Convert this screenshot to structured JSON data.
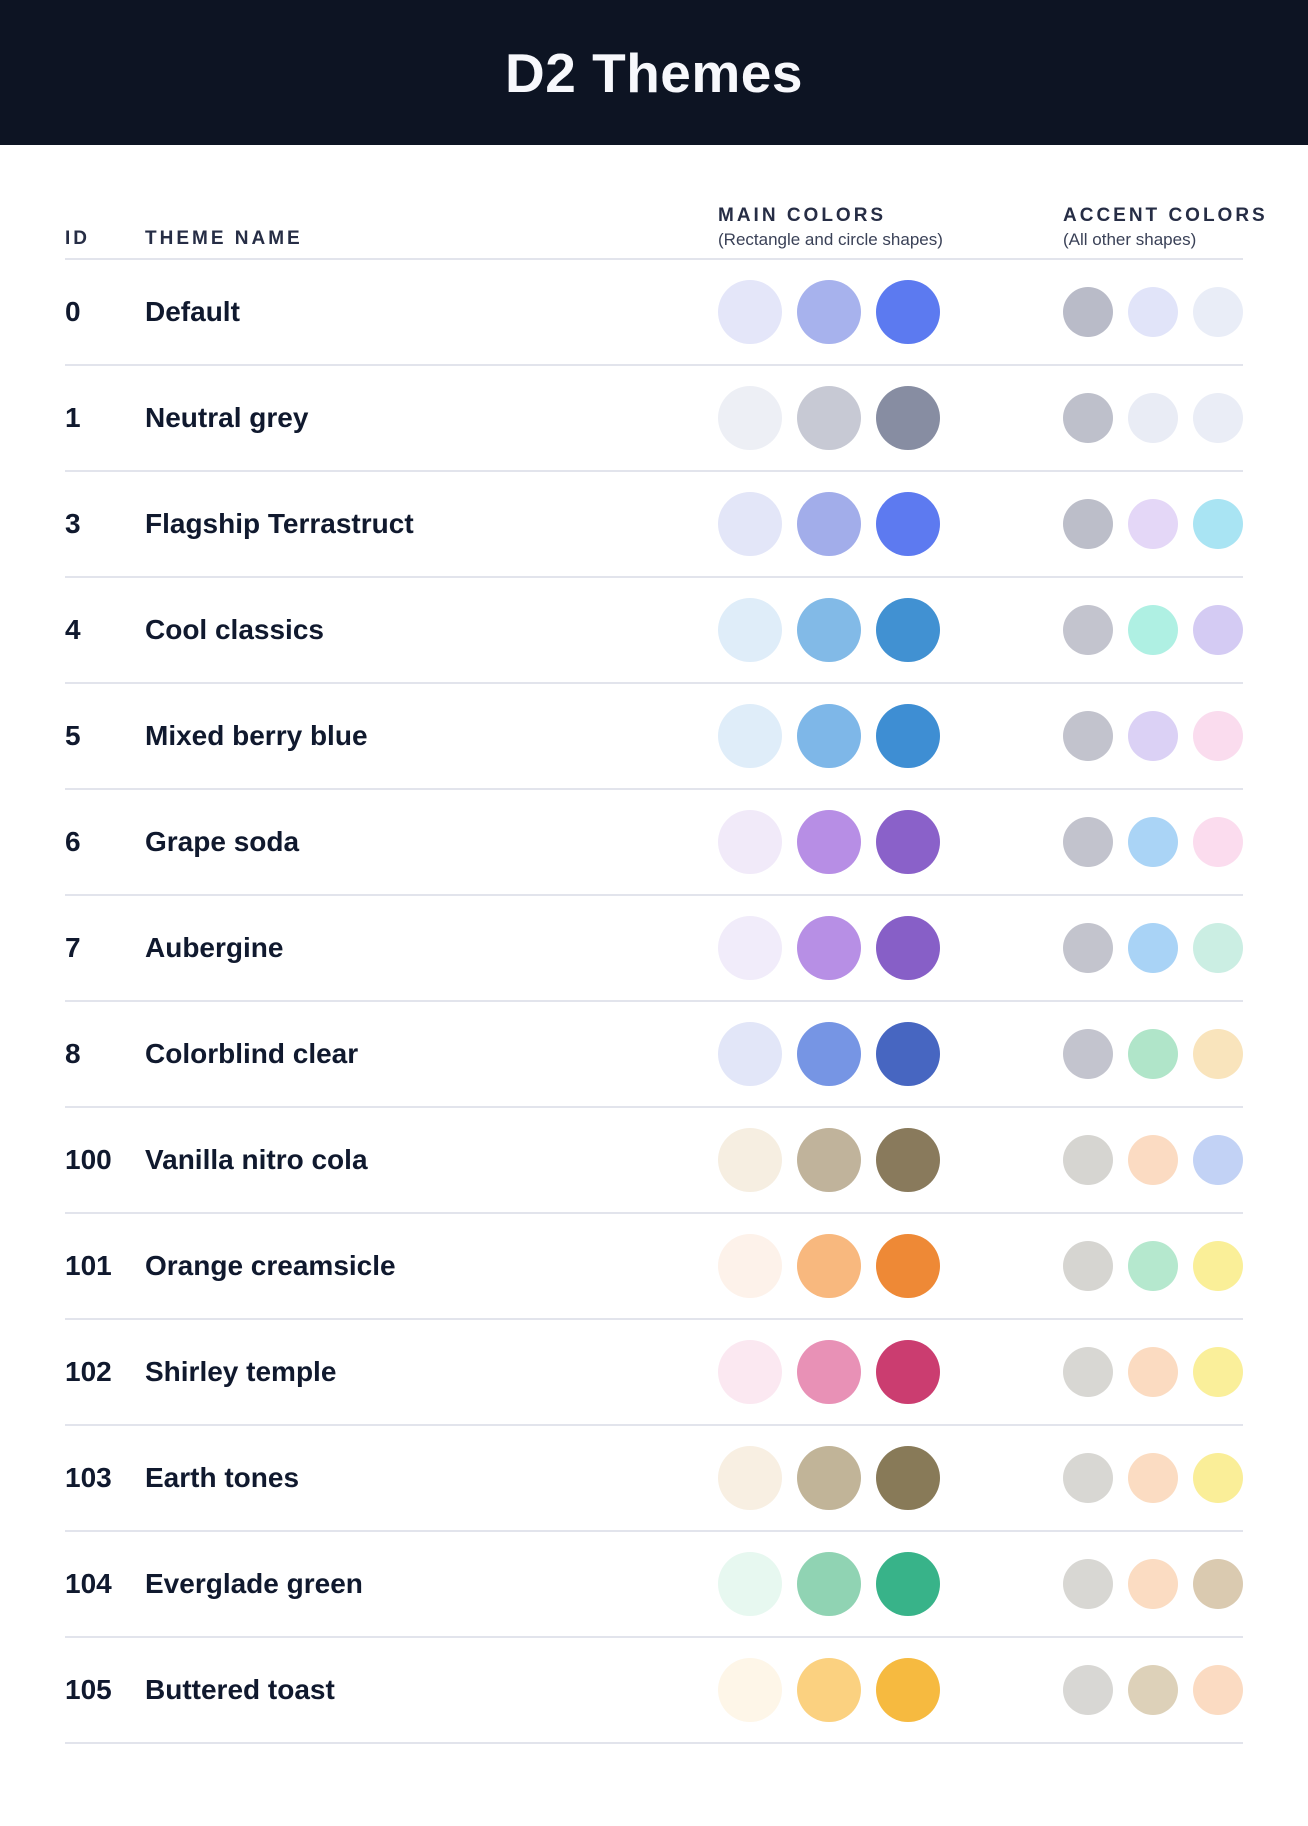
{
  "header": {
    "title": "D2 Themes"
  },
  "table": {
    "columns": {
      "id_label": "ID",
      "name_label": "THEME NAME",
      "main_label": "MAIN COLORS",
      "main_sublabel": "(Rectangle and circle shapes)",
      "accent_label": "ACCENT COLORS",
      "accent_sublabel": "(All other shapes)"
    },
    "rows": [
      {
        "id": "0",
        "name": "Default",
        "main_colors": [
          "#E4E6F9",
          "#A7B2ED",
          "#5C7AF0"
        ],
        "accent_colors": [
          "#B9BBC8",
          "#E1E4F9",
          "#E9EDF7"
        ]
      },
      {
        "id": "1",
        "name": "Neutral grey",
        "main_colors": [
          "#EDEFF5",
          "#C7C9D4",
          "#878DA2"
        ],
        "accent_colors": [
          "#BEC0CB",
          "#E9ECF5",
          "#EAEDF6"
        ]
      },
      {
        "id": "3",
        "name": "Flagship Terrastruct",
        "main_colors": [
          "#E3E6F8",
          "#A2ADEA",
          "#5D7AF0"
        ],
        "accent_colors": [
          "#BCBEC9",
          "#E4D7F7",
          "#A9E4F3"
        ]
      },
      {
        "id": "4",
        "name": "Cool classics",
        "main_colors": [
          "#DFEDF9",
          "#82BAE7",
          "#4191D2"
        ],
        "accent_colors": [
          "#C3C4CE",
          "#AFF0E3",
          "#D4CBF3"
        ]
      },
      {
        "id": "5",
        "name": "Mixed berry blue",
        "main_colors": [
          "#DFEDF9",
          "#7EB7E8",
          "#3E8ED3"
        ],
        "accent_colors": [
          "#C2C3CD",
          "#DBD1F5",
          "#FADCEE"
        ]
      },
      {
        "id": "6",
        "name": "Grape soda",
        "main_colors": [
          "#F1EAF9",
          "#B78EE5",
          "#8A61C9"
        ],
        "accent_colors": [
          "#C2C3CD",
          "#AAD4F6",
          "#FBDCEE"
        ]
      },
      {
        "id": "7",
        "name": "Aubergine",
        "main_colors": [
          "#F1ECFA",
          "#B78FE5",
          "#875FC7"
        ],
        "accent_colors": [
          "#C3C4CD",
          "#A9D3F6",
          "#CBEEE3"
        ]
      },
      {
        "id": "8",
        "name": "Colorblind clear",
        "main_colors": [
          "#E2E6F8",
          "#7695E4",
          "#4766C1"
        ],
        "accent_colors": [
          "#C3C4CE",
          "#B0E5C9",
          "#F9E4BC"
        ]
      },
      {
        "id": "100",
        "name": "Vanilla nitro cola",
        "main_colors": [
          "#F6EEE1",
          "#C0B39B",
          "#897A5C"
        ],
        "accent_colors": [
          "#D6D5D1",
          "#FBDBC2",
          "#C2D2F5"
        ]
      },
      {
        "id": "101",
        "name": "Orange creamsicle",
        "main_colors": [
          "#FDF2EA",
          "#F8B87E",
          "#EE8936"
        ],
        "accent_colors": [
          "#D6D5D1",
          "#B5E8CE",
          "#FAEF98"
        ]
      },
      {
        "id": "102",
        "name": "Shirley temple",
        "main_colors": [
          "#FBE8F1",
          "#E891B6",
          "#CB3D70"
        ],
        "accent_colors": [
          "#D8D7D3",
          "#FBDBC1",
          "#FAEF9A"
        ]
      },
      {
        "id": "103",
        "name": "Earth tones",
        "main_colors": [
          "#F8EFE2",
          "#C1B498",
          "#887A58"
        ],
        "accent_colors": [
          "#D8D7D3",
          "#FBDCC2",
          "#FAEE98"
        ]
      },
      {
        "id": "104",
        "name": "Everglade green",
        "main_colors": [
          "#E7F8F0",
          "#90D3B3",
          "#38B389"
        ],
        "accent_colors": [
          "#D8D7D3",
          "#FBDCC2",
          "#DACAB0"
        ]
      },
      {
        "id": "105",
        "name": "Buttered toast",
        "main_colors": [
          "#FEF6E8",
          "#FBD180",
          "#F6BA40"
        ],
        "accent_colors": [
          "#D8D7D4",
          "#DDD1B9",
          "#FBDBC2"
        ]
      }
    ]
  },
  "colors": {
    "banner_background": "#0D1423",
    "divider": "#E2E4EC",
    "heading_text": "#262D45",
    "row_text": "#10192E"
  }
}
